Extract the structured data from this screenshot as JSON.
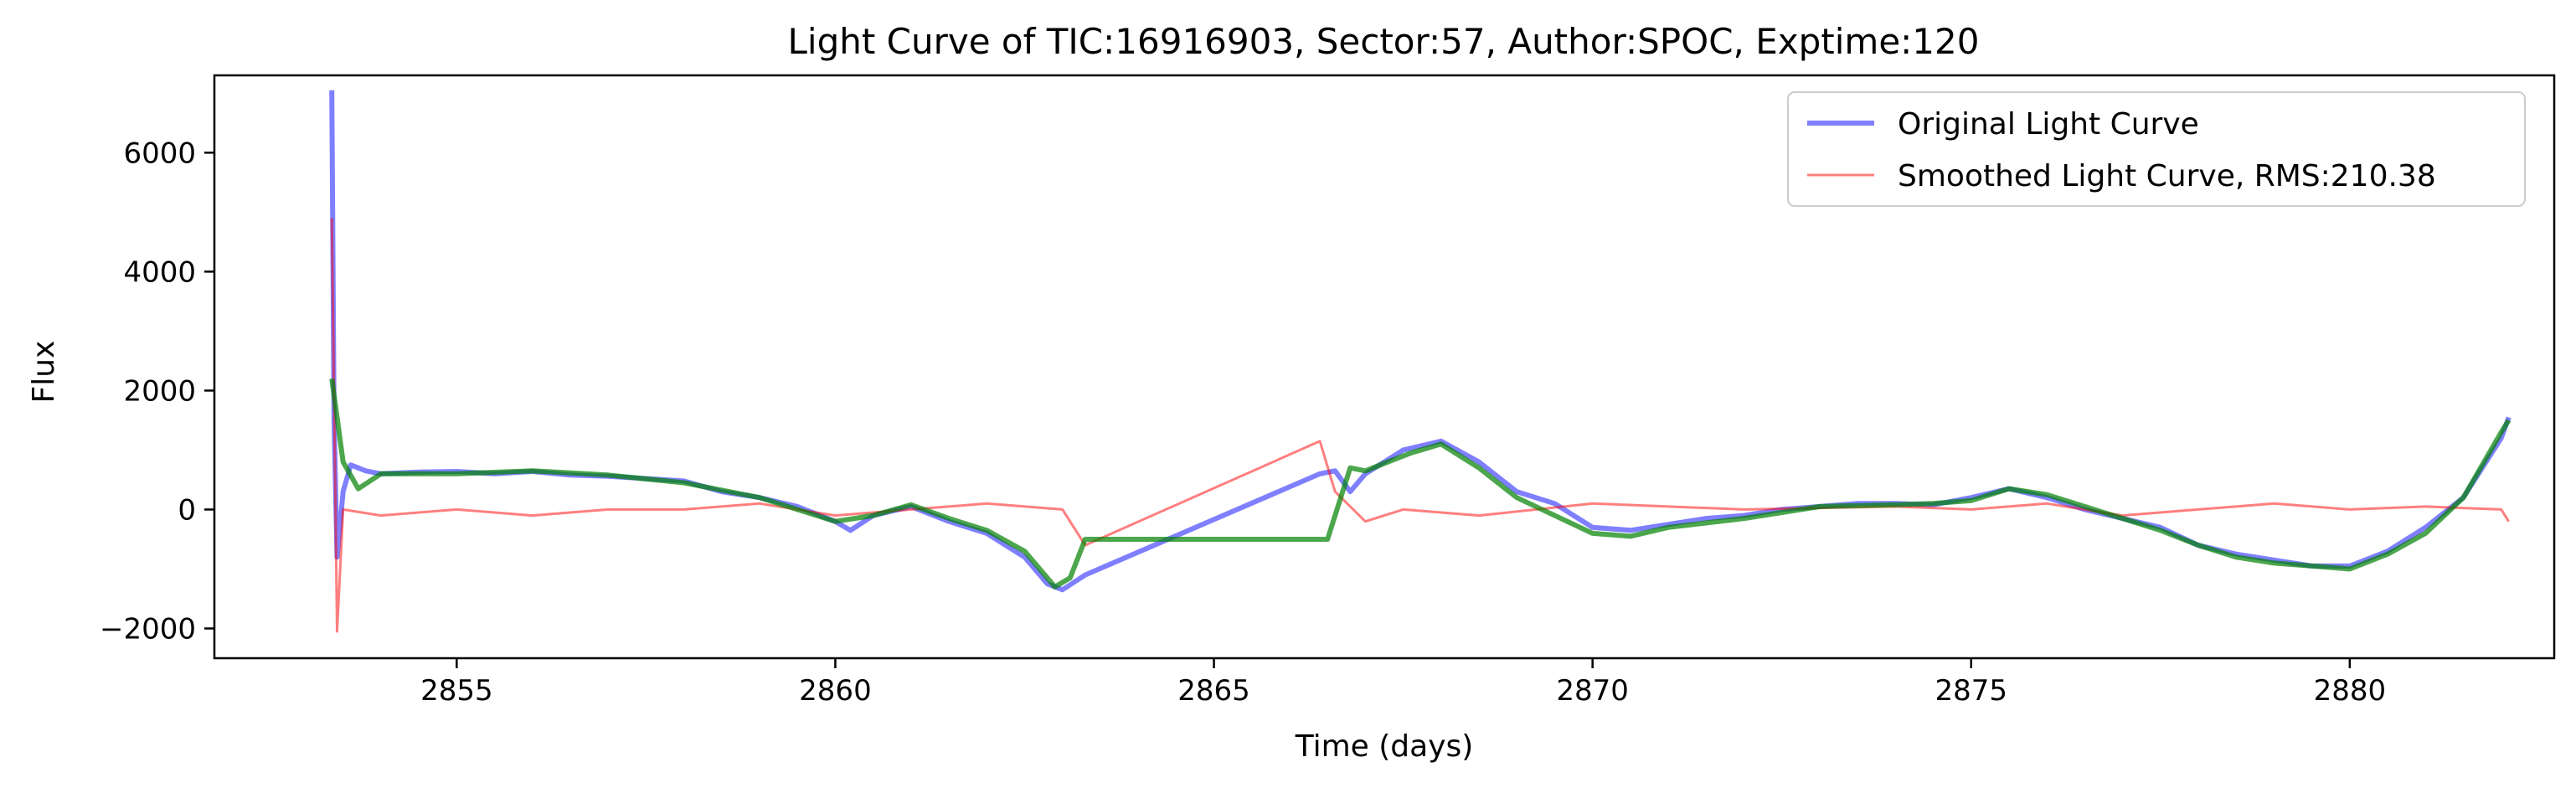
{
  "chart_data": {
    "type": "line",
    "title": "Light Curve of TIC:16916903, Sector:57, Author:SPOC, Exptime:120",
    "xlabel": "Time (days)",
    "ylabel": "Flux",
    "xlim": [
      2851.8,
      2882.7
    ],
    "ylim": [
      -2500,
      7300
    ],
    "xticks": [
      2855,
      2860,
      2865,
      2870,
      2875,
      2880
    ],
    "xtick_labels": [
      "2855",
      "2860",
      "2865",
      "2870",
      "2875",
      "2880"
    ],
    "yticks": [
      -2000,
      0,
      2000,
      4000,
      6000
    ],
    "ytick_labels": [
      "−2000",
      "0",
      "2000",
      "4000",
      "6000"
    ],
    "grid": false,
    "legend_position": "top-right",
    "series": [
      {
        "name": "Original Light Curve",
        "color": "#0000ff",
        "points": [
          [
            2853.35,
            7050
          ],
          [
            2853.38,
            1500
          ],
          [
            2853.42,
            -800
          ],
          [
            2853.5,
            300
          ],
          [
            2853.6,
            750
          ],
          [
            2853.8,
            650
          ],
          [
            2854.0,
            600
          ],
          [
            2854.5,
            630
          ],
          [
            2855.0,
            640
          ],
          [
            2855.5,
            600
          ],
          [
            2856.0,
            640
          ],
          [
            2856.5,
            580
          ],
          [
            2857.0,
            560
          ],
          [
            2857.5,
            520
          ],
          [
            2858.0,
            480
          ],
          [
            2858.5,
            300
          ],
          [
            2859.0,
            200
          ],
          [
            2859.5,
            50
          ],
          [
            2860.0,
            -200
          ],
          [
            2860.2,
            -350
          ],
          [
            2860.5,
            -100
          ],
          [
            2861.0,
            50
          ],
          [
            2861.5,
            -200
          ],
          [
            2862.0,
            -400
          ],
          [
            2862.5,
            -800
          ],
          [
            2862.8,
            -1250
          ],
          [
            2863.0,
            -1350
          ],
          [
            2863.3,
            -1100
          ],
          [
            2866.4,
            600
          ],
          [
            2866.6,
            650
          ],
          [
            2866.8,
            300
          ],
          [
            2867.0,
            600
          ],
          [
            2867.5,
            1000
          ],
          [
            2868.0,
            1150
          ],
          [
            2868.5,
            800
          ],
          [
            2869.0,
            300
          ],
          [
            2869.5,
            100
          ],
          [
            2870.0,
            -300
          ],
          [
            2870.5,
            -350
          ],
          [
            2871.0,
            -250
          ],
          [
            2871.5,
            -150
          ],
          [
            2872.0,
            -100
          ],
          [
            2872.5,
            0
          ],
          [
            2873.0,
            50
          ],
          [
            2873.5,
            100
          ],
          [
            2874.0,
            100
          ],
          [
            2874.5,
            80
          ],
          [
            2875.0,
            200
          ],
          [
            2875.5,
            350
          ],
          [
            2876.0,
            200
          ],
          [
            2876.5,
            0
          ],
          [
            2877.0,
            -150
          ],
          [
            2877.5,
            -300
          ],
          [
            2878.0,
            -600
          ],
          [
            2878.5,
            -750
          ],
          [
            2879.0,
            -850
          ],
          [
            2879.5,
            -950
          ],
          [
            2880.0,
            -950
          ],
          [
            2880.5,
            -700
          ],
          [
            2881.0,
            -300
          ],
          [
            2881.5,
            200
          ],
          [
            2882.0,
            1200
          ],
          [
            2882.1,
            1550
          ]
        ]
      },
      {
        "name": "Smoothed Light Curve, RMS:210.38",
        "color": "#ff0000",
        "points": [
          [
            2853.35,
            4900
          ],
          [
            2853.42,
            -2050
          ],
          [
            2853.5,
            0
          ],
          [
            2854.0,
            -100
          ],
          [
            2855.0,
            0
          ],
          [
            2856.0,
            -100
          ],
          [
            2857.0,
            0
          ],
          [
            2858.0,
            0
          ],
          [
            2859.0,
            100
          ],
          [
            2860.0,
            -100
          ],
          [
            2861.0,
            0
          ],
          [
            2862.0,
            100
          ],
          [
            2863.0,
            0
          ],
          [
            2863.3,
            -600
          ],
          [
            2866.4,
            1150
          ],
          [
            2866.6,
            300
          ],
          [
            2867.0,
            -200
          ],
          [
            2867.5,
            0
          ],
          [
            2868.5,
            -100
          ],
          [
            2870.0,
            100
          ],
          [
            2872.0,
            0
          ],
          [
            2874.0,
            50
          ],
          [
            2875.0,
            0
          ],
          [
            2876.0,
            100
          ],
          [
            2877.0,
            -100
          ],
          [
            2878.0,
            0
          ],
          [
            2879.0,
            100
          ],
          [
            2880.0,
            0
          ],
          [
            2881.0,
            50
          ],
          [
            2882.0,
            0
          ],
          [
            2882.1,
            -200
          ]
        ]
      },
      {
        "name": "",
        "color": "#008000",
        "points": [
          [
            2853.35,
            2200
          ],
          [
            2853.5,
            800
          ],
          [
            2853.7,
            350
          ],
          [
            2854.0,
            600
          ],
          [
            2855.0,
            600
          ],
          [
            2856.0,
            650
          ],
          [
            2857.0,
            580
          ],
          [
            2858.0,
            450
          ],
          [
            2859.0,
            200
          ],
          [
            2860.0,
            -200
          ],
          [
            2860.5,
            -100
          ],
          [
            2861.0,
            80
          ],
          [
            2861.5,
            -150
          ],
          [
            2862.0,
            -350
          ],
          [
            2862.5,
            -700
          ],
          [
            2862.9,
            -1300
          ],
          [
            2863.1,
            -1150
          ],
          [
            2863.3,
            -500
          ],
          [
            2866.5,
            -500
          ],
          [
            2866.8,
            700
          ],
          [
            2867.0,
            650
          ],
          [
            2867.3,
            800
          ],
          [
            2867.6,
            950
          ],
          [
            2868.0,
            1100
          ],
          [
            2868.5,
            700
          ],
          [
            2869.0,
            200
          ],
          [
            2869.5,
            -100
          ],
          [
            2870.0,
            -400
          ],
          [
            2870.5,
            -450
          ],
          [
            2871.0,
            -300
          ],
          [
            2872.0,
            -150
          ],
          [
            2873.0,
            50
          ],
          [
            2874.0,
            80
          ],
          [
            2874.5,
            100
          ],
          [
            2875.0,
            150
          ],
          [
            2875.5,
            350
          ],
          [
            2876.0,
            250
          ],
          [
            2876.5,
            50
          ],
          [
            2877.0,
            -150
          ],
          [
            2877.5,
            -350
          ],
          [
            2878.0,
            -600
          ],
          [
            2878.5,
            -800
          ],
          [
            2879.0,
            -900
          ],
          [
            2879.5,
            -950
          ],
          [
            2880.0,
            -1000
          ],
          [
            2880.5,
            -750
          ],
          [
            2881.0,
            -400
          ],
          [
            2881.5,
            200
          ],
          [
            2882.0,
            1300
          ],
          [
            2882.1,
            1500
          ]
        ]
      }
    ]
  }
}
